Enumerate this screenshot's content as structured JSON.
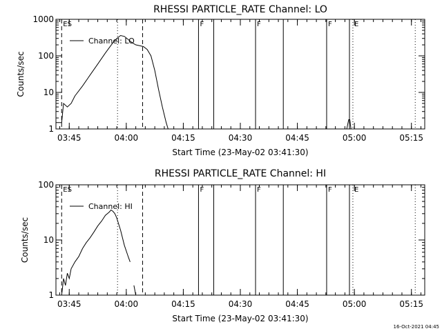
{
  "chart_data": [
    {
      "type": "line",
      "title": "RHESSI PARTICLE_RATE Channel: LO",
      "xlabel": "Start Time (23-May-02 03:41:30)",
      "ylabel": "Counts/sec",
      "yscale": "log",
      "xlim_min": [
        0,
        97
      ],
      "ylim": [
        1,
        1000
      ],
      "yticks": [
        1,
        10,
        100,
        1000
      ],
      "ytick_labels": [
        "1",
        "10",
        "100",
        "1000"
      ],
      "xticks_min": [
        3.5,
        18.5,
        33.5,
        48.5,
        63.5,
        78.5,
        93.5
      ],
      "xtick_labels": [
        "03:45",
        "04:00",
        "04:15",
        "04:30",
        "04:45",
        "05:00",
        "05:15"
      ],
      "legend": "Channel: LO",
      "series": [
        {
          "name": "Channel: LO",
          "x": [
            0,
            1.5,
            2,
            3,
            4,
            5,
            7,
            9,
            11,
            13,
            15,
            16,
            17,
            18,
            19,
            20,
            21,
            22,
            23,
            24,
            25,
            26,
            27,
            28,
            29,
            29.5
          ],
          "y": [
            1.5,
            1.5,
            5,
            4,
            5,
            8,
            15,
            30,
            60,
            120,
            230,
            300,
            360,
            340,
            280,
            230,
            200,
            190,
            180,
            150,
            100,
            40,
            12,
            4,
            1.5,
            1
          ]
        },
        {
          "name": "",
          "x": [
            76.5,
            77,
            77.3,
            77.6
          ],
          "y": [
            1,
            1.8,
            1.8,
            1
          ]
        }
      ],
      "vlines": [
        {
          "x": 1.5,
          "style": "dashed",
          "flag": "ES"
        },
        {
          "x": 16.2,
          "style": "dotted",
          "flag": ""
        },
        {
          "x": 22.8,
          "style": "dashed",
          "flag": ""
        },
        {
          "x": 37.5,
          "style": "solid",
          "flag": "F"
        },
        {
          "x": 41.5,
          "style": "solid",
          "flag": ""
        },
        {
          "x": 52.5,
          "style": "solid",
          "flag": "F"
        },
        {
          "x": 59.8,
          "style": "solid",
          "flag": ""
        },
        {
          "x": 71.2,
          "style": "solid",
          "flag": "F"
        },
        {
          "x": 77.2,
          "style": "solid",
          "flag": ""
        },
        {
          "x": 78.1,
          "style": "dotted",
          "flag": "E"
        },
        {
          "x": 94.5,
          "style": "dotted",
          "flag": ""
        }
      ]
    },
    {
      "type": "line",
      "title": "RHESSI PARTICLE_RATE Channel: HI",
      "xlabel": "Start Time (23-May-02 03:41:30)",
      "ylabel": "Counts/sec",
      "yscale": "log",
      "xlim_min": [
        0,
        97
      ],
      "ylim": [
        1,
        100
      ],
      "yticks": [
        1,
        10,
        100
      ],
      "ytick_labels": [
        "1",
        "10",
        "100"
      ],
      "xticks_min": [
        3.5,
        18.5,
        33.5,
        48.5,
        63.5,
        78.5,
        93.5
      ],
      "xtick_labels": [
        "03:45",
        "04:00",
        "04:15",
        "04:30",
        "04:45",
        "05:00",
        "05:15"
      ],
      "legend": "Channel: HI",
      "series": [
        {
          "name": "Channel: HI",
          "x": [
            1.5,
            2,
            2.5,
            3,
            3.5,
            4,
            5,
            6,
            7,
            8,
            9,
            10,
            11,
            12,
            13,
            14,
            14.5,
            15,
            15.5,
            16,
            17,
            18,
            19,
            19.5
          ],
          "y": [
            1,
            2,
            1.5,
            2.5,
            2,
            3,
            4,
            5,
            7,
            9,
            11,
            14,
            18,
            22,
            28,
            32,
            35,
            33,
            30,
            25,
            15,
            8,
            5,
            4
          ]
        },
        {
          "name": "",
          "x": [
            20.5,
            21
          ],
          "y": [
            1.5,
            1
          ]
        }
      ],
      "vlines": [
        {
          "x": 1.5,
          "style": "dashed",
          "flag": "ES"
        },
        {
          "x": 16.2,
          "style": "dotted",
          "flag": ""
        },
        {
          "x": 22.8,
          "style": "dashed",
          "flag": ""
        },
        {
          "x": 37.5,
          "style": "solid",
          "flag": "F"
        },
        {
          "x": 41.5,
          "style": "solid",
          "flag": ""
        },
        {
          "x": 52.5,
          "style": "solid",
          "flag": "F"
        },
        {
          "x": 59.8,
          "style": "solid",
          "flag": ""
        },
        {
          "x": 71.2,
          "style": "solid",
          "flag": "F"
        },
        {
          "x": 77.2,
          "style": "solid",
          "flag": ""
        },
        {
          "x": 78.1,
          "style": "dotted",
          "flag": "E"
        },
        {
          "x": 94.5,
          "style": "dotted",
          "flag": ""
        }
      ]
    }
  ],
  "footer": {
    "timestamp": "16-Oct-2021 04:45"
  }
}
